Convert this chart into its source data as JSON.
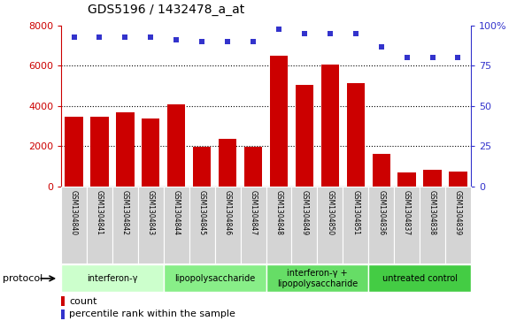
{
  "title": "GDS5196 / 1432478_a_at",
  "samples": [
    "GSM1304840",
    "GSM1304841",
    "GSM1304842",
    "GSM1304843",
    "GSM1304844",
    "GSM1304845",
    "GSM1304846",
    "GSM1304847",
    "GSM1304848",
    "GSM1304849",
    "GSM1304850",
    "GSM1304851",
    "GSM1304836",
    "GSM1304837",
    "GSM1304838",
    "GSM1304839"
  ],
  "counts": [
    3450,
    3450,
    3700,
    3380,
    4100,
    1950,
    2350,
    1950,
    6500,
    5050,
    6050,
    5150,
    1630,
    700,
    800,
    750
  ],
  "percentiles": [
    93,
    93,
    93,
    93,
    91,
    90,
    90,
    90,
    98,
    95,
    95,
    95,
    87,
    80,
    80,
    80
  ],
  "bar_color": "#cc0000",
  "dot_color": "#3333cc",
  "left_axis_color": "#cc0000",
  "right_axis_color": "#3333cc",
  "ylim_left": [
    0,
    8000
  ],
  "ylim_right": [
    0,
    100
  ],
  "yticks_left": [
    0,
    2000,
    4000,
    6000,
    8000
  ],
  "yticks_right": [
    0,
    25,
    50,
    75,
    100
  ],
  "ytick_labels_right": [
    "0",
    "25",
    "50",
    "75",
    "100%"
  ],
  "groups": [
    {
      "label": "interferon-γ",
      "start": 0,
      "end": 4,
      "color": "#ccffcc"
    },
    {
      "label": "lipopolysaccharide",
      "start": 4,
      "end": 8,
      "color": "#88ee88"
    },
    {
      "label": "interferon-γ +\nlipopolysaccharide",
      "start": 8,
      "end": 12,
      "color": "#66dd66"
    },
    {
      "label": "untreated control",
      "start": 12,
      "end": 16,
      "color": "#44cc44"
    }
  ],
  "protocol_label": "protocol",
  "legend_count_label": "count",
  "legend_percentile_label": "percentile rank within the sample",
  "tick_area_color": "#d4d4d4",
  "grid_lines": [
    2000,
    4000,
    6000
  ]
}
